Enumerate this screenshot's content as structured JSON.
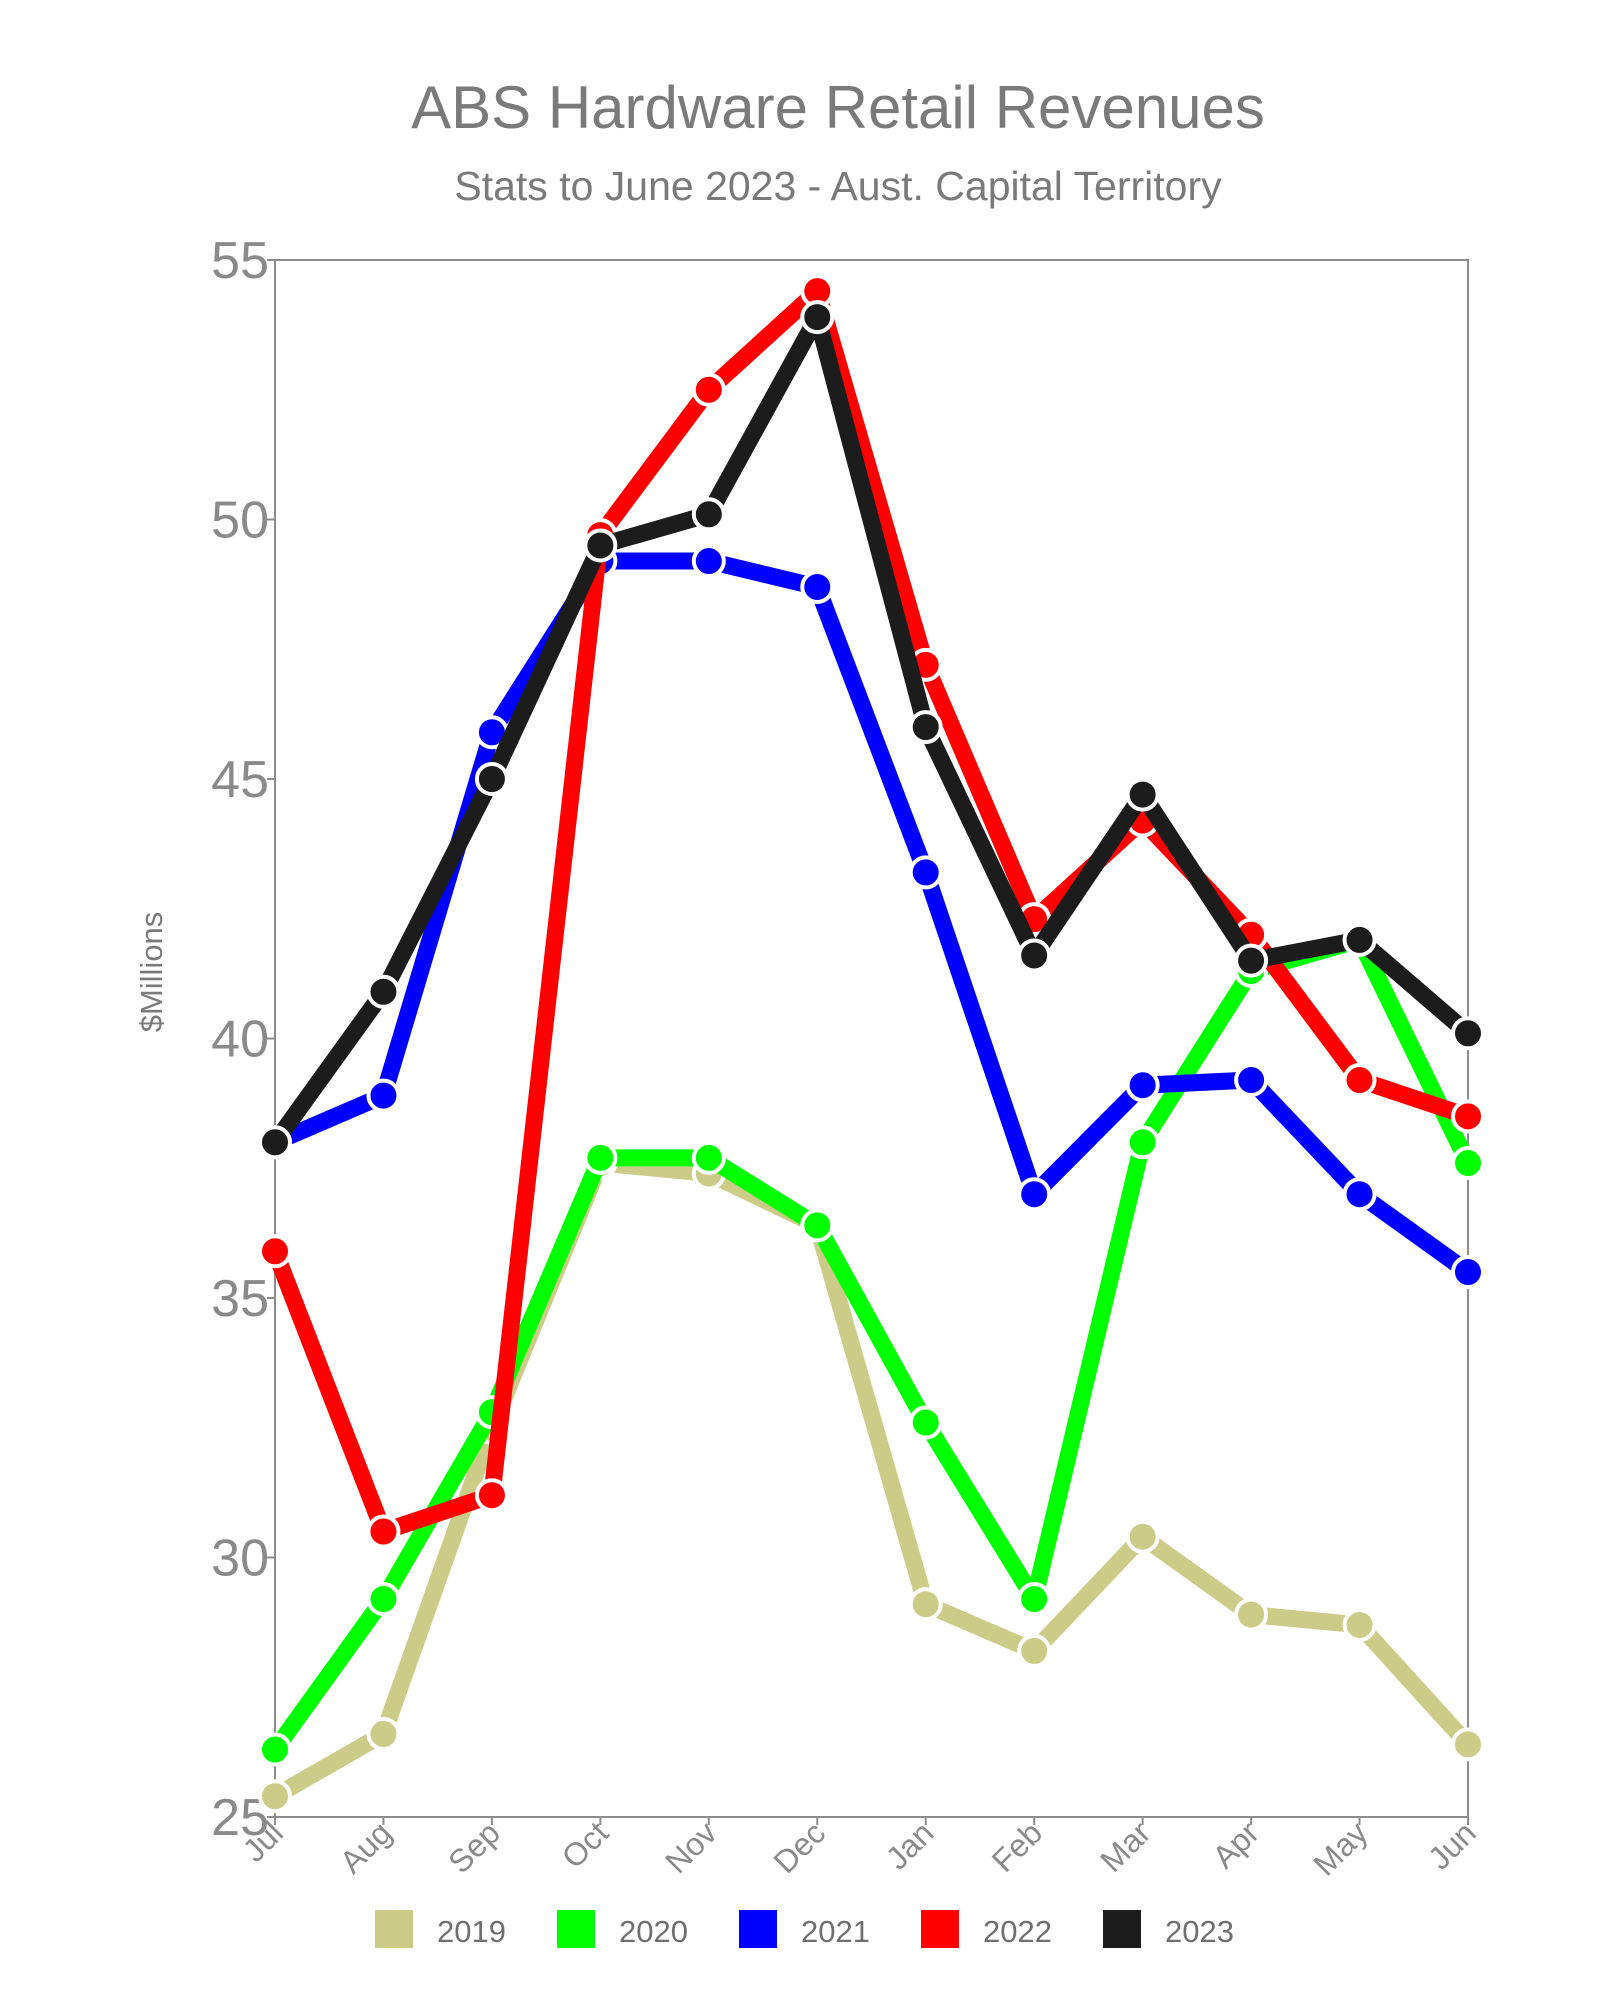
{
  "chart_data": {
    "type": "line",
    "title": "ABS Hardware Retail Revenues",
    "subtitle": "Stats to June 2023 - Aust. Capital Territory",
    "ylabel": "$Millions",
    "xlabel": "",
    "categories": [
      "Jul",
      "Aug",
      "Sep",
      "Oct",
      "Nov",
      "Dec",
      "Jan",
      "Feb",
      "Mar",
      "Apr",
      "May",
      "Jun"
    ],
    "ylim": [
      25,
      55
    ],
    "yticks": [
      25,
      30,
      35,
      40,
      45,
      50,
      55
    ],
    "grid": false,
    "legend_position": "bottom",
    "series": [
      {
        "name": "2019",
        "color": "#cccc88",
        "values": [
          25.4,
          26.6,
          32.5,
          37.6,
          37.4,
          36.4,
          29.1,
          28.2,
          30.4,
          28.9,
          28.7,
          26.4
        ]
      },
      {
        "name": "2020",
        "color": "#00ff00",
        "values": [
          26.3,
          29.2,
          32.8,
          37.7,
          37.7,
          36.4,
          32.6,
          29.2,
          38.0,
          41.3,
          41.9,
          37.6
        ]
      },
      {
        "name": "2021",
        "color": "#0000ff",
        "values": [
          38.0,
          38.9,
          45.9,
          49.2,
          49.2,
          48.7,
          43.2,
          37.0,
          39.1,
          39.2,
          37.0,
          35.5
        ]
      },
      {
        "name": "2022",
        "color": "#ff0000",
        "values": [
          35.9,
          30.5,
          31.2,
          49.7,
          52.5,
          54.4,
          47.2,
          42.3,
          44.2,
          42.0,
          39.2,
          38.5
        ]
      },
      {
        "name": "2023",
        "color": "#1c1c1c",
        "values": [
          38.0,
          40.9,
          45.0,
          49.5,
          50.1,
          53.9,
          46.0,
          41.6,
          44.7,
          41.5,
          41.9,
          40.1
        ]
      }
    ]
  }
}
